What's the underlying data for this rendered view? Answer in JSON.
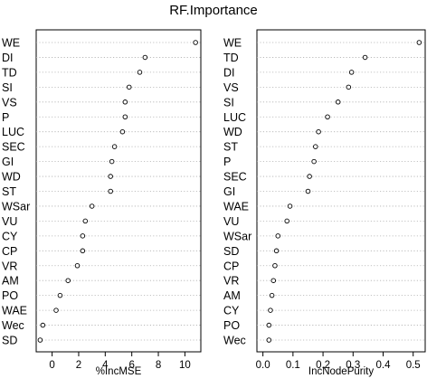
{
  "chart_data": {
    "title": "RF.Importance",
    "panels": [
      {
        "type": "dotchart",
        "xlabel": "%IncMSE",
        "xlim": [
          -1.2,
          11.2
        ],
        "xticks": [
          0,
          2,
          4,
          6,
          8,
          10
        ],
        "point_color": "#000000",
        "guide_color": "#b0b0b0",
        "categories": [
          "WE",
          "DI",
          "TD",
          "SI",
          "VS",
          "P",
          "LUC",
          "SEC",
          "GI",
          "WD",
          "ST",
          "WSar",
          "VU",
          "CY",
          "CP",
          "VR",
          "AM",
          "PO",
          "WAE",
          "Wec",
          "SD"
        ],
        "values": [
          10.8,
          7.0,
          6.6,
          5.8,
          5.5,
          5.5,
          5.3,
          4.7,
          4.5,
          4.4,
          4.4,
          3.0,
          2.5,
          2.3,
          2.3,
          1.9,
          1.2,
          0.6,
          0.3,
          -0.7,
          -0.9
        ]
      },
      {
        "type": "dotchart",
        "xlabel": "IncNodePurity",
        "xlim": [
          -0.02,
          0.54
        ],
        "xticks": [
          0.0,
          0.1,
          0.2,
          0.3,
          0.4,
          0.5
        ],
        "point_color": "#000000",
        "guide_color": "#b0b0b0",
        "categories": [
          "WE",
          "TD",
          "DI",
          "VS",
          "SI",
          "LUC",
          "WD",
          "ST",
          "P",
          "SEC",
          "GI",
          "WAE",
          "VU",
          "WSar",
          "SD",
          "CP",
          "VR",
          "AM",
          "CY",
          "PO",
          "Wec"
        ],
        "values": [
          0.52,
          0.34,
          0.295,
          0.285,
          0.25,
          0.215,
          0.185,
          0.175,
          0.17,
          0.155,
          0.15,
          0.09,
          0.08,
          0.05,
          0.045,
          0.04,
          0.035,
          0.03,
          0.025,
          0.02,
          0.02
        ]
      }
    ]
  }
}
